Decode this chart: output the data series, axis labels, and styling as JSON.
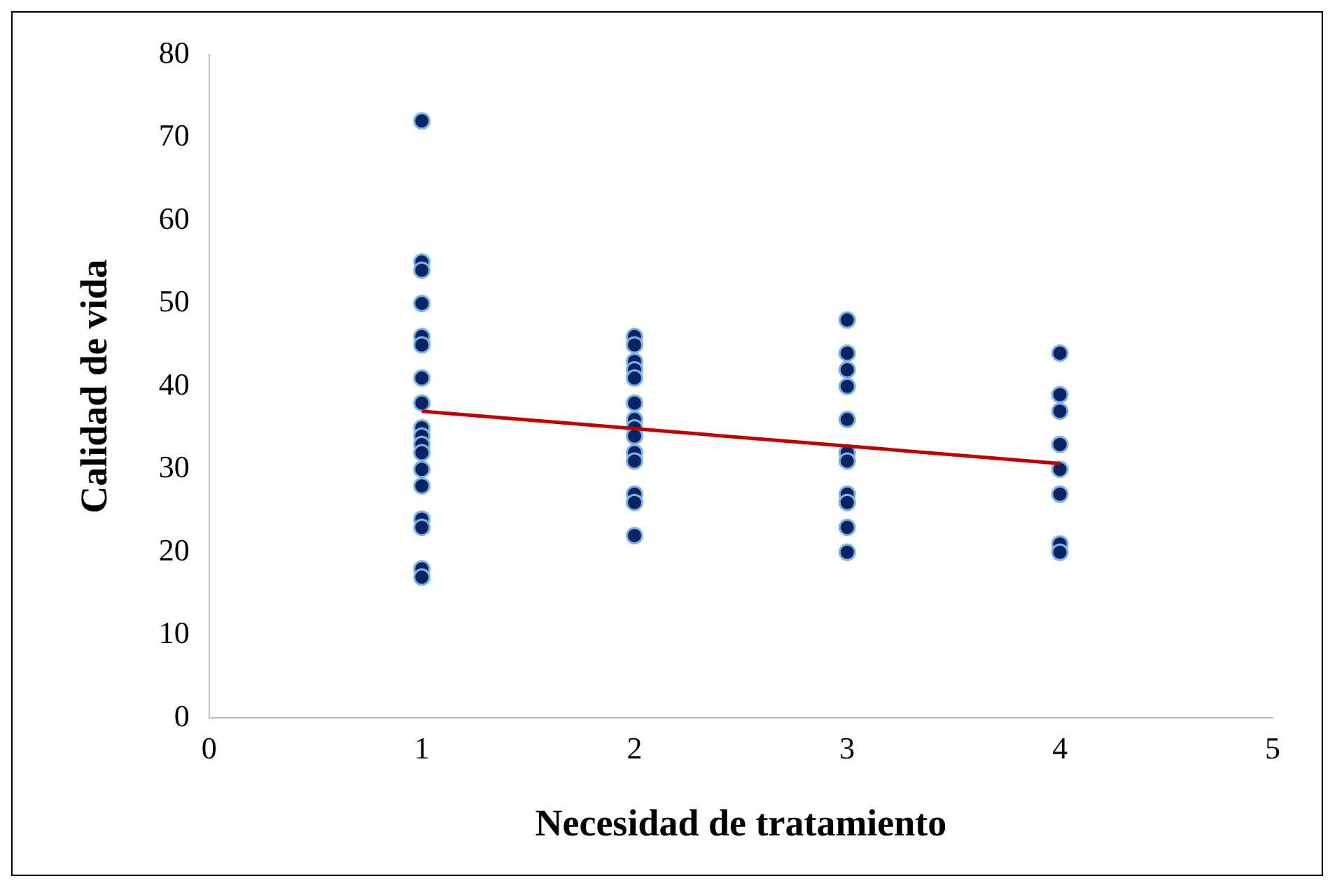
{
  "chart_data": {
    "type": "scatter",
    "xlabel": "Necesidad de tratamiento",
    "ylabel": "Calidad de vida",
    "xlim": [
      0,
      5
    ],
    "xticks": [
      0,
      1,
      2,
      3,
      4,
      5
    ],
    "ylim": [
      0,
      80
    ],
    "yticks": [
      0,
      10,
      20,
      30,
      40,
      50,
      60,
      70,
      80
    ],
    "grid": false,
    "legend": false,
    "marker": "circle",
    "series": [
      {
        "color": "#0a2463",
        "x": [
          1,
          1,
          1,
          1,
          1,
          1,
          1,
          1,
          1,
          1,
          1,
          1,
          1,
          1,
          1,
          1,
          1,
          1,
          2,
          2,
          2,
          2,
          2,
          2,
          2,
          2,
          2,
          2,
          2,
          2,
          2,
          2,
          3,
          3,
          3,
          3,
          3,
          3,
          3,
          3,
          3,
          3,
          3,
          4,
          4,
          4,
          4,
          4,
          4,
          4,
          4
        ],
        "values": [
          72,
          55,
          54,
          50,
          46,
          45,
          41,
          38,
          35,
          34,
          33,
          32,
          30,
          28,
          24,
          23,
          18,
          17,
          46,
          45,
          43,
          42,
          41,
          38,
          36,
          35,
          34,
          32,
          31,
          27,
          26,
          22,
          48,
          44,
          42,
          40,
          36,
          32,
          31,
          27,
          26,
          23,
          20,
          44,
          39,
          37,
          33,
          30,
          27,
          21,
          20
        ]
      },
      {
        "type": "line",
        "color": "#c00000",
        "x": [
          1,
          4
        ],
        "values": [
          37,
          30.7
        ],
        "marker": "none"
      }
    ]
  }
}
